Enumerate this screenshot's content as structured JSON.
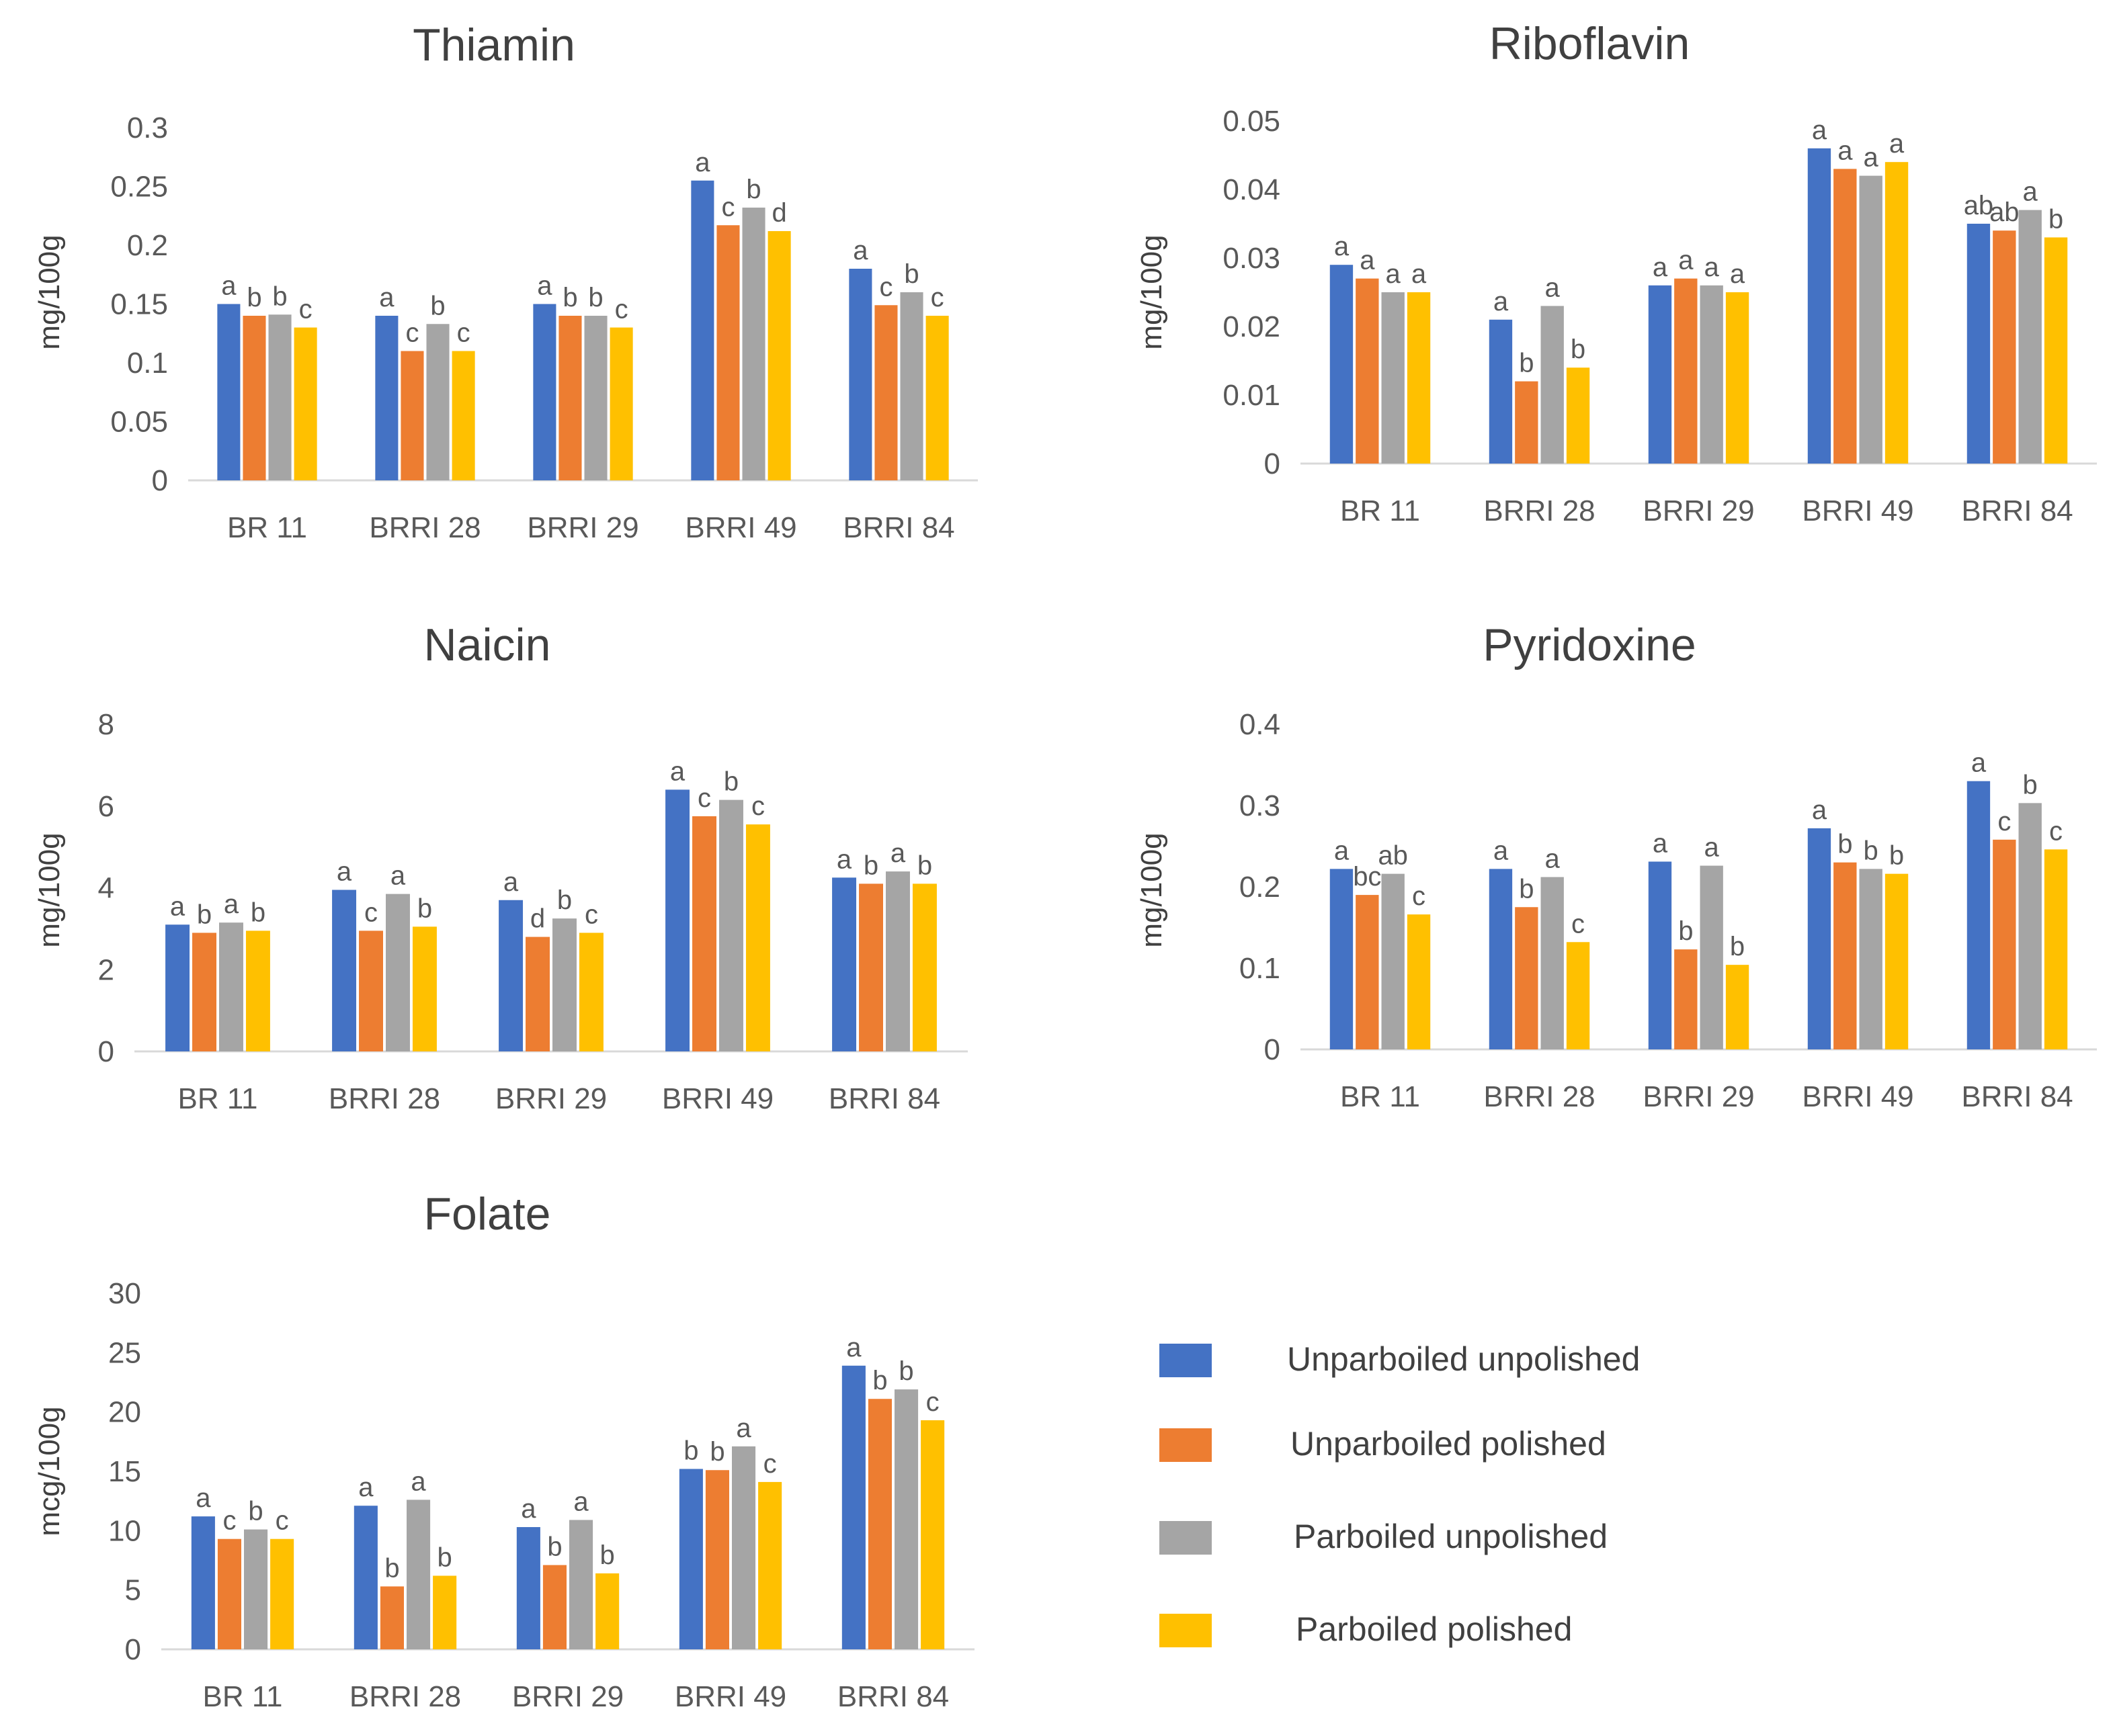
{
  "legend": {
    "items": [
      {
        "label": "Unparboiled unpolished",
        "color": "#4472C4"
      },
      {
        "label": "Unparboiled polished",
        "color": "#ED7D31"
      },
      {
        "label": "Parboiled unpolished",
        "color": "#A5A5A5"
      },
      {
        "label": "Parboiled polished",
        "color": "#FFC000"
      }
    ]
  },
  "chart_data": [
    {
      "type": "bar",
      "title": "Thiamin",
      "ylabel": "mg/100g",
      "xlabel": "",
      "categories": [
        "BR 11",
        "BRRI 28",
        "BRRI 29",
        "BRRI 49",
        "BRRI 84"
      ],
      "ylim": [
        0,
        0.3
      ],
      "yticks": [
        "0",
        "0.05",
        "0.1",
        "0.15",
        "0.2",
        "0.25",
        "0.3"
      ],
      "series": [
        {
          "name": "Unparboiled unpolished",
          "values": [
            0.15,
            0.14,
            0.15,
            0.255,
            0.18
          ],
          "letters": [
            "a",
            "a",
            "a",
            "a",
            "a"
          ]
        },
        {
          "name": "Unparboiled polished",
          "values": [
            0.14,
            0.11,
            0.14,
            0.217,
            0.149
          ],
          "letters": [
            "b",
            "c",
            "b",
            "c",
            "c"
          ]
        },
        {
          "name": "Parboiled unpolished",
          "values": [
            0.141,
            0.133,
            0.14,
            0.232,
            0.16
          ],
          "letters": [
            "b",
            "b",
            "b",
            "b",
            "b"
          ]
        },
        {
          "name": "Parboiled polished",
          "values": [
            0.13,
            0.11,
            0.13,
            0.212,
            0.14
          ],
          "letters": [
            "c",
            "c",
            "c",
            "d",
            "c"
          ]
        }
      ]
    },
    {
      "type": "bar",
      "title": "Riboflavin",
      "ylabel": "mg/100g",
      "xlabel": "",
      "categories": [
        "BR 11",
        "BRRI 28",
        "BRRI 29",
        "BRRI 49",
        "BRRI 84"
      ],
      "ylim": [
        0,
        0.05
      ],
      "yticks": [
        "0",
        "0.01",
        "0.02",
        "0.03",
        "0.04",
        "0.05"
      ],
      "series": [
        {
          "name": "Unparboiled unpolished",
          "values": [
            0.029,
            0.021,
            0.026,
            0.046,
            0.035
          ],
          "letters": [
            "a",
            "a",
            "a",
            "a",
            "ab"
          ]
        },
        {
          "name": "Unparboiled polished",
          "values": [
            0.027,
            0.012,
            0.027,
            0.043,
            0.034
          ],
          "letters": [
            "a",
            "b",
            "a",
            "a",
            "ab"
          ]
        },
        {
          "name": "Parboiled unpolished",
          "values": [
            0.025,
            0.023,
            0.026,
            0.042,
            0.037
          ],
          "letters": [
            "a",
            "a",
            "a",
            "a",
            "a"
          ]
        },
        {
          "name": "Parboiled polished",
          "values": [
            0.025,
            0.014,
            0.025,
            0.044,
            0.033
          ],
          "letters": [
            "a",
            "b",
            "a",
            "a",
            "b"
          ]
        }
      ]
    },
    {
      "type": "bar",
      "title": "Naicin",
      "ylabel": "mg/100g",
      "xlabel": "",
      "categories": [
        "BR 11",
        "BRRI 28",
        "BRRI 29",
        "BRRI 49",
        "BRRI 84"
      ],
      "ylim": [
        0,
        8
      ],
      "yticks": [
        "0",
        "2",
        "4",
        "6",
        "8"
      ],
      "series": [
        {
          "name": "Unparboiled unpolished",
          "values": [
            3.1,
            3.95,
            3.7,
            6.4,
            4.25
          ],
          "letters": [
            "a",
            "a",
            "a",
            "a",
            "a"
          ]
        },
        {
          "name": "Unparboiled polished",
          "values": [
            2.9,
            2.95,
            2.8,
            5.75,
            4.1
          ],
          "letters": [
            "b",
            "c",
            "d",
            "c",
            "b"
          ]
        },
        {
          "name": "Parboiled unpolished",
          "values": [
            3.15,
            3.85,
            3.25,
            6.15,
            4.4
          ],
          "letters": [
            "a",
            "a",
            "b",
            "b",
            "a"
          ]
        },
        {
          "name": "Parboiled polished",
          "values": [
            2.95,
            3.05,
            2.9,
            5.55,
            4.1
          ],
          "letters": [
            "b",
            "b",
            "c",
            "c",
            "b"
          ]
        }
      ]
    },
    {
      "type": "bar",
      "title": "Pyridoxine",
      "ylabel": "mg/100g",
      "xlabel": "",
      "categories": [
        "BR 11",
        "BRRI 28",
        "BRRI 29",
        "BRRI 49",
        "BRRI 84"
      ],
      "ylim": [
        0,
        0.4
      ],
      "yticks": [
        "0",
        "0.1",
        "0.2",
        "0.3",
        "0.4"
      ],
      "series": [
        {
          "name": "Unparboiled unpolished",
          "values": [
            0.222,
            0.222,
            0.231,
            0.272,
            0.33
          ],
          "letters": [
            "a",
            "a",
            "a",
            "a",
            "a"
          ]
        },
        {
          "name": "Unparboiled polished",
          "values": [
            0.19,
            0.175,
            0.123,
            0.23,
            0.258
          ],
          "letters": [
            "bc",
            "b",
            "b",
            "b",
            "c"
          ]
        },
        {
          "name": "Parboiled unpolished",
          "values": [
            0.216,
            0.212,
            0.226,
            0.222,
            0.303
          ],
          "letters": [
            "ab",
            "a",
            "a",
            "b",
            "b"
          ]
        },
        {
          "name": "Parboiled polished",
          "values": [
            0.166,
            0.132,
            0.104,
            0.216,
            0.246
          ],
          "letters": [
            "c",
            "c",
            "b",
            "b",
            "c"
          ]
        }
      ]
    },
    {
      "type": "bar",
      "title": "Folate",
      "ylabel": "mcg/100g",
      "xlabel": "",
      "categories": [
        "BR 11",
        "BRRI 28",
        "BRRI 29",
        "BRRI 49",
        "BRRI 84"
      ],
      "ylim": [
        0,
        30
      ],
      "yticks": [
        "0",
        "5",
        "10",
        "15",
        "20",
        "25",
        "30"
      ],
      "series": [
        {
          "name": "Unparboiled unpolished",
          "values": [
            11.2,
            12.1,
            10.3,
            15.2,
            23.9
          ],
          "letters": [
            "a",
            "a",
            "a",
            "b",
            "a"
          ]
        },
        {
          "name": "Unparboiled polished",
          "values": [
            9.3,
            5.3,
            7.1,
            15.1,
            21.1
          ],
          "letters": [
            "c",
            "b",
            "b",
            "b",
            "b"
          ]
        },
        {
          "name": "Parboiled unpolished",
          "values": [
            10.1,
            12.6,
            10.9,
            17.1,
            21.9
          ],
          "letters": [
            "b",
            "a",
            "a",
            "a",
            "b"
          ]
        },
        {
          "name": "Parboiled polished",
          "values": [
            9.3,
            6.2,
            6.4,
            14.1,
            19.3
          ],
          "letters": [
            "c",
            "b",
            "b",
            "c",
            "c"
          ]
        }
      ]
    }
  ]
}
